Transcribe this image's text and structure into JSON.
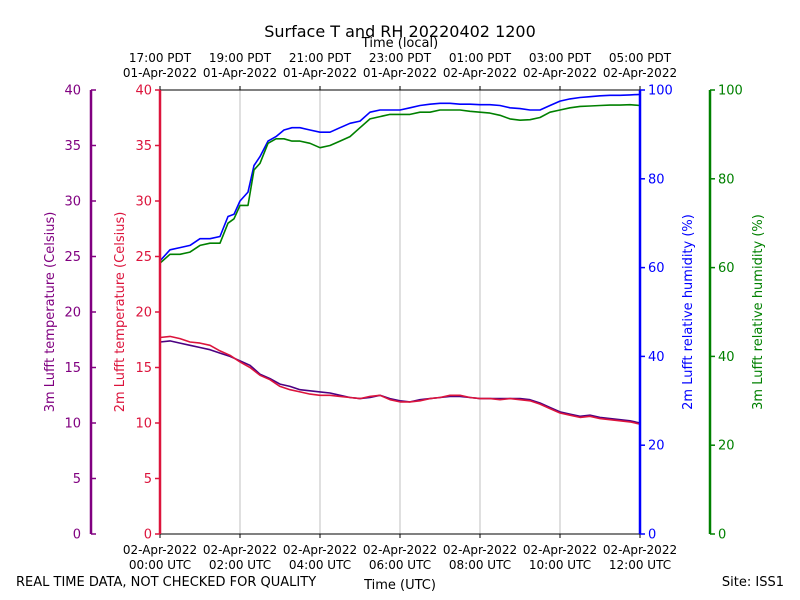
{
  "chart_data": {
    "type": "line",
    "title": "Surface T and RH 20220402 1200",
    "x_range": [
      "2022-04-02T00:00Z",
      "2022-04-02T12:00Z"
    ],
    "bottom_axis": {
      "label": "Time (UTC)",
      "ticks": [
        {
          "t": 0,
          "date": "02-Apr-2022",
          "time": "00:00 UTC"
        },
        {
          "t": 2,
          "date": "02-Apr-2022",
          "time": "02:00 UTC"
        },
        {
          "t": 4,
          "date": "02-Apr-2022",
          "time": "04:00 UTC"
        },
        {
          "t": 6,
          "date": "02-Apr-2022",
          "time": "06:00 UTC"
        },
        {
          "t": 8,
          "date": "02-Apr-2022",
          "time": "08:00 UTC"
        },
        {
          "t": 10,
          "date": "02-Apr-2022",
          "time": "10:00 UTC"
        },
        {
          "t": 12,
          "date": "02-Apr-2022",
          "time": "12:00 UTC"
        }
      ]
    },
    "top_axis": {
      "label": "Time (local)",
      "ticks": [
        {
          "t": 0,
          "time": "17:00 PDT",
          "date": "01-Apr-2022"
        },
        {
          "t": 2,
          "time": "19:00 PDT",
          "date": "01-Apr-2022"
        },
        {
          "t": 4,
          "time": "21:00 PDT",
          "date": "01-Apr-2022"
        },
        {
          "t": 6,
          "time": "23:00 PDT",
          "date": "01-Apr-2022"
        },
        {
          "t": 8,
          "time": "01:00 PDT",
          "date": "02-Apr-2022"
        },
        {
          "t": 10,
          "time": "03:00 PDT",
          "date": "02-Apr-2022"
        },
        {
          "t": 12,
          "time": "05:00 PDT",
          "date": "02-Apr-2022"
        }
      ]
    },
    "y_axes": [
      {
        "id": "t3m",
        "label": "3m Lufft temperature (Celsius)",
        "ylim": [
          0,
          40
        ],
        "ticks": [
          0,
          5,
          10,
          15,
          20,
          25,
          30,
          35,
          40
        ],
        "color": "#800080"
      },
      {
        "id": "t2m",
        "label": "2m Lufft temperature (Celsius)",
        "ylim": [
          0,
          40
        ],
        "ticks": [
          0,
          5,
          10,
          15,
          20,
          25,
          30,
          35,
          40
        ],
        "color": "#dc143c"
      },
      {
        "id": "rh2m",
        "label": "2m Lufft relative humidity (%)",
        "ylim": [
          0,
          100
        ],
        "ticks": [
          0,
          20,
          40,
          60,
          80,
          100
        ],
        "color": "#0000ff"
      },
      {
        "id": "rh3m",
        "label": "3m Lufft relative humidity (%)",
        "ylim": [
          0,
          100
        ],
        "ticks": [
          0,
          20,
          40,
          60,
          80,
          100
        ],
        "color": "#008000"
      }
    ],
    "grid": "vertical",
    "series": [
      {
        "axis": "rh2m",
        "color": "#0000ff",
        "t": [
          0,
          0.25,
          0.5,
          0.75,
          1.0,
          1.25,
          1.5,
          1.7,
          1.85,
          2.0,
          2.2,
          2.35,
          2.5,
          2.7,
          2.9,
          3.1,
          3.3,
          3.5,
          3.75,
          4.0,
          4.25,
          4.5,
          4.75,
          5.0,
          5.25,
          5.5,
          5.75,
          6.0,
          6.25,
          6.5,
          6.75,
          7.0,
          7.25,
          7.5,
          7.75,
          8.0,
          8.25,
          8.5,
          8.75,
          9.0,
          9.25,
          9.5,
          9.75,
          10.0,
          10.25,
          10.5,
          10.75,
          11.0,
          11.25,
          11.5,
          11.75,
          12.0
        ],
        "values": [
          61.5,
          64,
          64.5,
          65,
          66.5,
          66.5,
          67,
          71.5,
          72,
          75,
          77,
          83,
          85,
          88.5,
          89.5,
          91,
          91.5,
          91.5,
          91,
          90.5,
          90.5,
          91.5,
          92.5,
          93,
          95,
          95.5,
          95.5,
          95.5,
          96,
          96.5,
          96.8,
          97,
          97,
          96.8,
          96.8,
          96.7,
          96.7,
          96.5,
          96,
          95.8,
          95.5,
          95.5,
          96.5,
          97.5,
          98,
          98.3,
          98.5,
          98.7,
          98.8,
          98.8,
          98.9,
          99
        ]
      },
      {
        "axis": "rh3m",
        "color": "#008000",
        "t": [
          0,
          0.25,
          0.5,
          0.75,
          1.0,
          1.25,
          1.5,
          1.7,
          1.85,
          2.0,
          2.2,
          2.35,
          2.5,
          2.7,
          2.9,
          3.1,
          3.3,
          3.5,
          3.75,
          4.0,
          4.25,
          4.5,
          4.75,
          5.0,
          5.25,
          5.5,
          5.75,
          6.0,
          6.25,
          6.5,
          6.75,
          7.0,
          7.25,
          7.5,
          7.75,
          8.0,
          8.25,
          8.5,
          8.75,
          9.0,
          9.25,
          9.5,
          9.75,
          10.0,
          10.25,
          10.5,
          10.75,
          11.0,
          11.25,
          11.5,
          11.75,
          12.0
        ],
        "values": [
          61,
          63,
          63,
          63.5,
          65,
          65.5,
          65.5,
          70,
          71,
          74,
          74,
          82,
          83.5,
          88,
          89,
          89,
          88.5,
          88.5,
          88,
          87,
          87.5,
          88.5,
          89.5,
          91.5,
          93.5,
          94,
          94.5,
          94.5,
          94.5,
          95,
          95,
          95.5,
          95.5,
          95.5,
          95.2,
          95,
          94.8,
          94.3,
          93.5,
          93.2,
          93.3,
          93.8,
          95,
          95.5,
          96,
          96.3,
          96.4,
          96.5,
          96.6,
          96.6,
          96.7,
          96.5
        ]
      },
      {
        "axis": "t3m",
        "color": "#4b0082",
        "t": [
          0,
          0.25,
          0.5,
          0.75,
          1.0,
          1.25,
          1.5,
          1.75,
          2.0,
          2.25,
          2.5,
          2.75,
          3.0,
          3.25,
          3.5,
          3.75,
          4.0,
          4.25,
          4.5,
          4.75,
          5.0,
          5.25,
          5.5,
          5.75,
          6.0,
          6.25,
          6.5,
          6.75,
          7.0,
          7.25,
          7.5,
          7.75,
          8.0,
          8.25,
          8.5,
          8.75,
          9.0,
          9.25,
          9.5,
          9.75,
          10.0,
          10.25,
          10.5,
          10.75,
          11.0,
          11.25,
          11.5,
          11.75,
          12.0
        ],
        "values": [
          17.3,
          17.4,
          17.2,
          17.0,
          16.8,
          16.6,
          16.3,
          16.0,
          15.6,
          15.2,
          14.4,
          14.0,
          13.5,
          13.3,
          13.0,
          12.9,
          12.8,
          12.7,
          12.5,
          12.3,
          12.2,
          12.3,
          12.5,
          12.2,
          12.0,
          11.9,
          12.1,
          12.2,
          12.3,
          12.4,
          12.4,
          12.3,
          12.2,
          12.2,
          12.2,
          12.2,
          12.2,
          12.1,
          11.8,
          11.4,
          11.0,
          10.8,
          10.6,
          10.7,
          10.5,
          10.4,
          10.3,
          10.2,
          10.0
        ]
      },
      {
        "axis": "t2m",
        "color": "#dc143c",
        "t": [
          0,
          0.25,
          0.5,
          0.75,
          1.0,
          1.25,
          1.5,
          1.75,
          2.0,
          2.25,
          2.5,
          2.75,
          3.0,
          3.25,
          3.5,
          3.75,
          4.0,
          4.25,
          4.5,
          4.75,
          5.0,
          5.25,
          5.5,
          5.75,
          6.0,
          6.25,
          6.5,
          6.75,
          7.0,
          7.25,
          7.5,
          7.75,
          8.0,
          8.25,
          8.5,
          8.75,
          9.0,
          9.25,
          9.5,
          9.75,
          10.0,
          10.25,
          10.5,
          10.75,
          11.0,
          11.25,
          11.5,
          11.75,
          12.0
        ],
        "values": [
          17.7,
          17.8,
          17.6,
          17.3,
          17.2,
          17.0,
          16.5,
          16.1,
          15.5,
          15.0,
          14.3,
          13.9,
          13.3,
          13.0,
          12.8,
          12.6,
          12.5,
          12.5,
          12.4,
          12.3,
          12.2,
          12.4,
          12.5,
          12.1,
          11.9,
          11.9,
          12.0,
          12.2,
          12.3,
          12.5,
          12.5,
          12.3,
          12.2,
          12.2,
          12.1,
          12.2,
          12.1,
          12.0,
          11.7,
          11.3,
          10.9,
          10.7,
          10.5,
          10.6,
          10.4,
          10.3,
          10.2,
          10.1,
          9.9
        ]
      }
    ]
  },
  "footer": {
    "left": "REAL TIME DATA, NOT CHECKED FOR QUALITY",
    "right": "Site: ISS1"
  }
}
